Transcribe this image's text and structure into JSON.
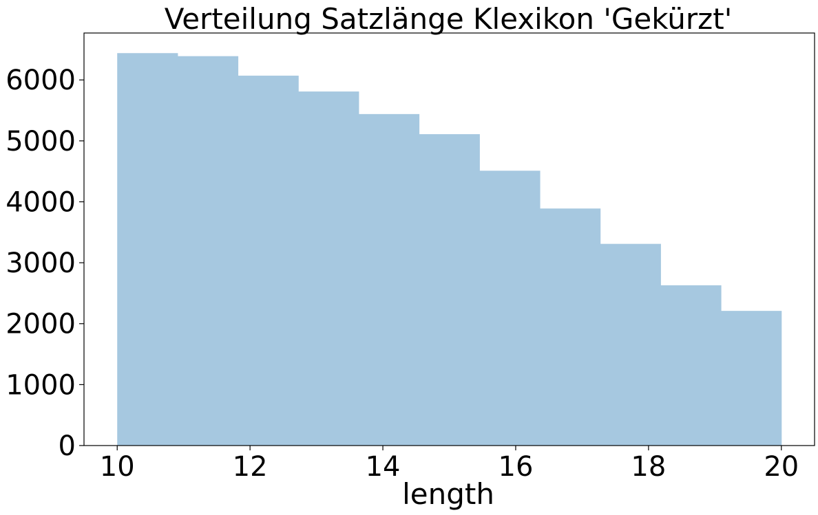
{
  "chart_data": {
    "type": "bar",
    "title": "Verteilung Satzlänge Klexikon 'Gekürzt'",
    "xlabel": "length",
    "ylabel": "",
    "bin_edges": [
      10,
      10.909,
      11.818,
      12.727,
      13.636,
      14.545,
      15.455,
      16.364,
      17.273,
      18.182,
      19.091,
      20
    ],
    "values": [
      6440,
      6390,
      6070,
      5810,
      5440,
      5110,
      4510,
      3890,
      3310,
      2630,
      2210
    ],
    "xlim": [
      9.5,
      20.5
    ],
    "ylim": [
      0,
      6770
    ],
    "x_ticks": [
      10,
      12,
      14,
      16,
      18,
      20
    ],
    "y_ticks": [
      0,
      1000,
      2000,
      3000,
      4000,
      5000,
      6000
    ],
    "grid": false,
    "legend": "none",
    "colors": {
      "bar": "#a6c8e0",
      "axis": "#000000",
      "background": "#ffffff"
    }
  }
}
